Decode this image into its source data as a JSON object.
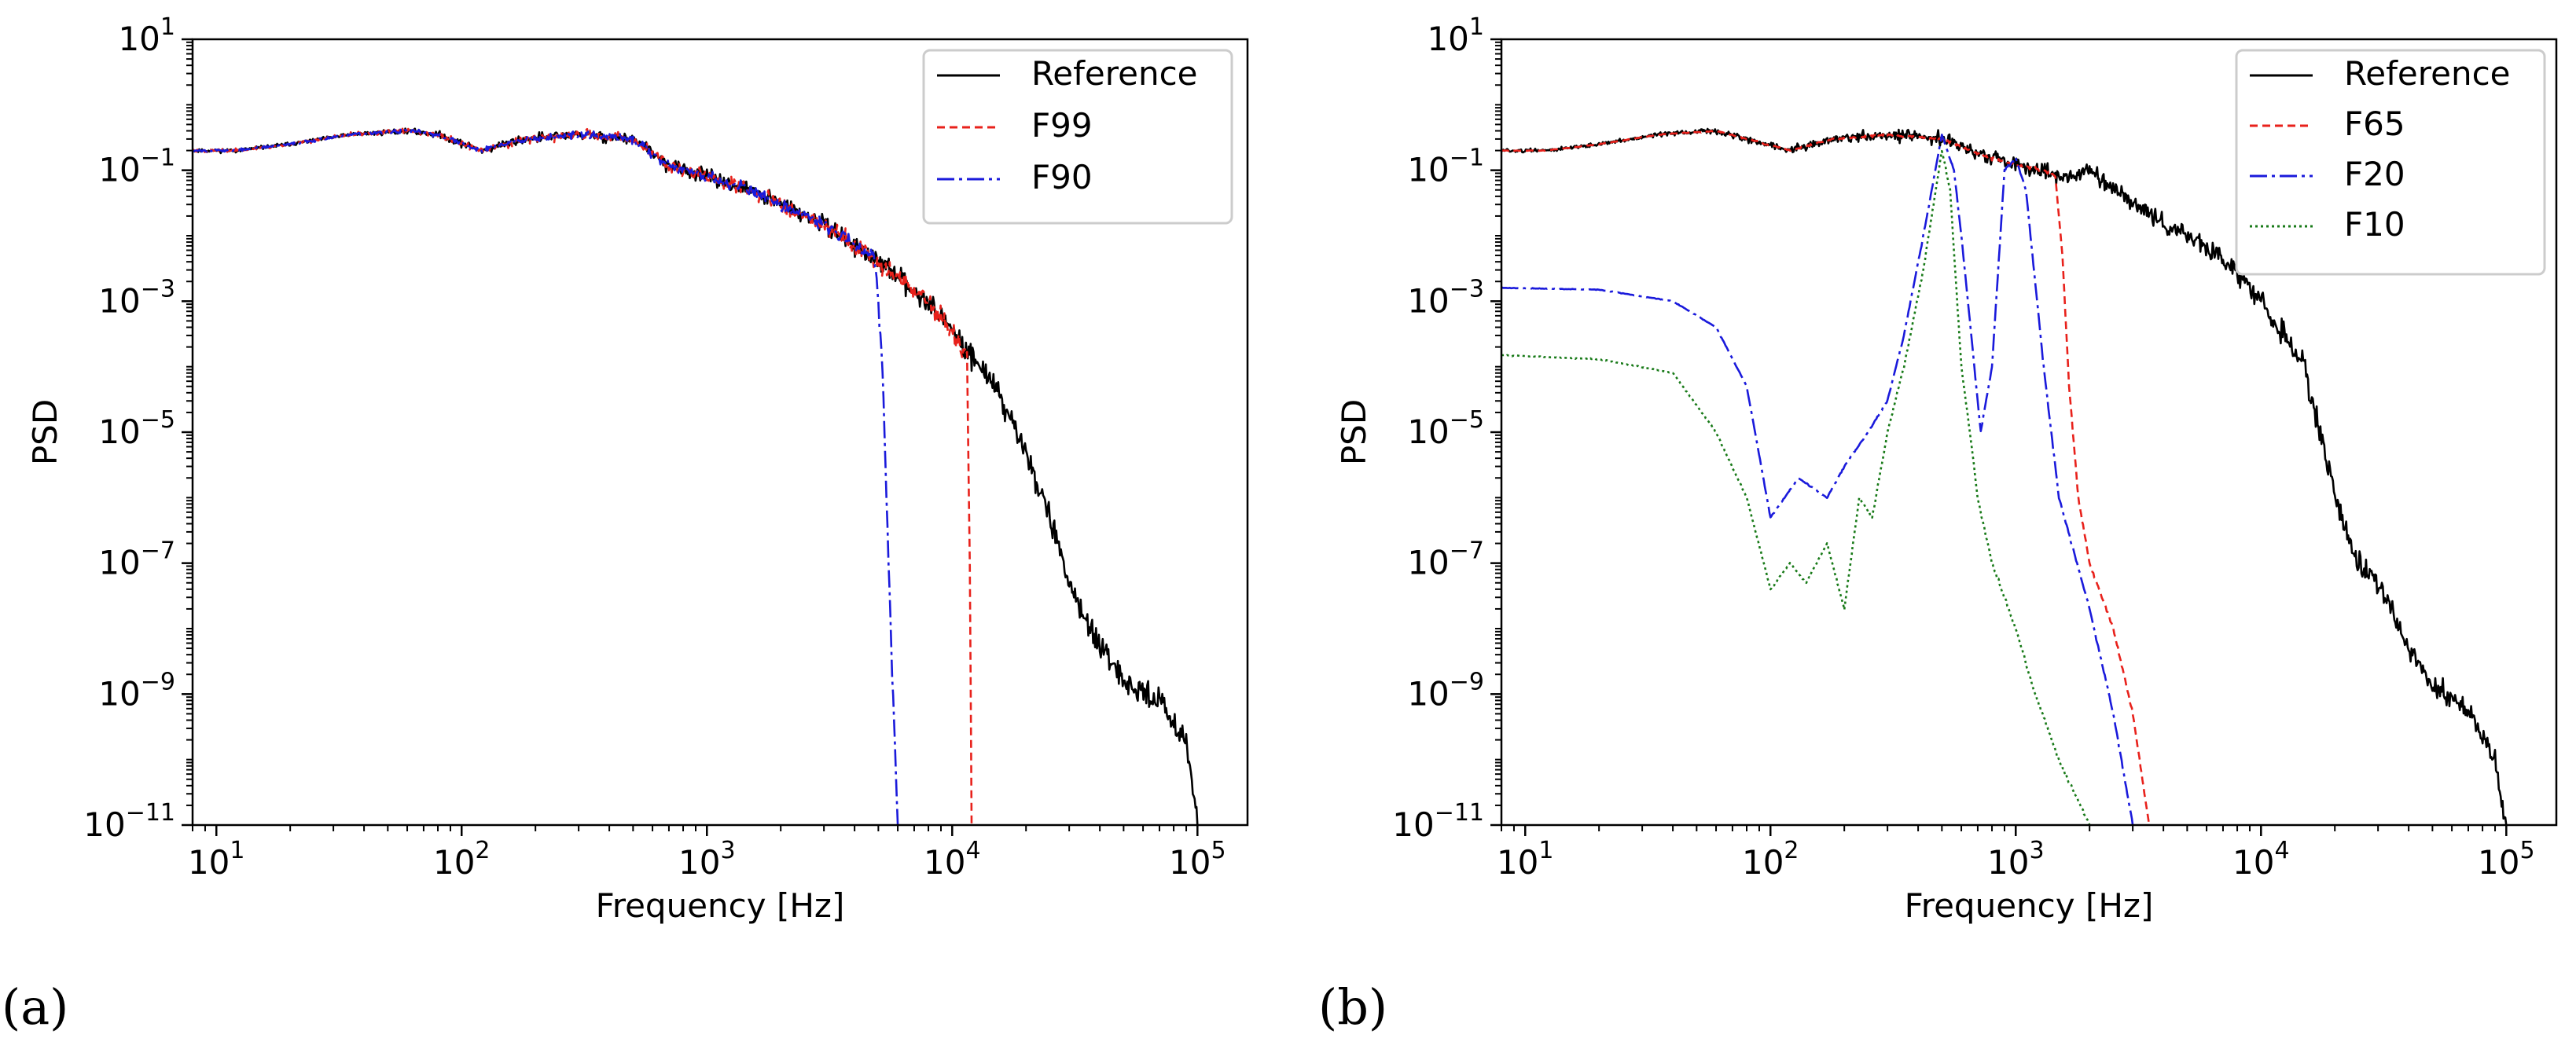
{
  "chart_data": [
    {
      "id": "a",
      "panel_label": "(a)",
      "type": "line",
      "xscale": "log",
      "yscale": "log",
      "xlim": [
        8,
        160000
      ],
      "ylim": [
        1e-11,
        10
      ],
      "xlabel": "Frequency [Hz]",
      "ylabel": "PSD",
      "xticks": [
        {
          "value": 10,
          "base": "10",
          "exp": "1"
        },
        {
          "value": 100,
          "base": "10",
          "exp": "2"
        },
        {
          "value": 1000,
          "base": "10",
          "exp": "3"
        },
        {
          "value": 10000,
          "base": "10",
          "exp": "4"
        },
        {
          "value": 100000,
          "base": "10",
          "exp": "5"
        }
      ],
      "yticks": [
        {
          "value": 10,
          "base": "10",
          "exp": "1"
        },
        {
          "value": 0.1,
          "base": "10",
          "exp": "−1"
        },
        {
          "value": 0.001,
          "base": "10",
          "exp": "−3"
        },
        {
          "value": 1e-05,
          "base": "10",
          "exp": "−5"
        },
        {
          "value": 1e-07,
          "base": "10",
          "exp": "−7"
        },
        {
          "value": 1e-09,
          "base": "10",
          "exp": "−9"
        },
        {
          "value": 1e-11,
          "base": "10",
          "exp": "−11"
        }
      ],
      "legend_position": "top-right",
      "series": [
        {
          "name": "Reference",
          "color": "#000000",
          "dash": "solid",
          "noise": 0.3,
          "seed": 11,
          "points": [
            [
              8,
              0.2
            ],
            [
              12,
              0.2
            ],
            [
              20,
              0.25
            ],
            [
              35,
              0.35
            ],
            [
              60,
              0.4
            ],
            [
              80,
              0.35
            ],
            [
              120,
              0.2
            ],
            [
              180,
              0.3
            ],
            [
              300,
              0.35
            ],
            [
              500,
              0.3
            ],
            [
              700,
              0.12
            ],
            [
              1000,
              0.08
            ],
            [
              1500,
              0.05
            ],
            [
              2000,
              0.03
            ],
            [
              3000,
              0.015
            ],
            [
              5000,
              0.004
            ],
            [
              8000,
              0.001
            ],
            [
              12000,
              0.00015
            ],
            [
              15000,
              5e-05
            ],
            [
              20000,
              5e-06
            ],
            [
              25000,
              5e-07
            ],
            [
              30000,
              5e-08
            ],
            [
              40000,
              5e-09
            ],
            [
              50000,
              1.5e-09
            ],
            [
              70000,
              8e-10
            ],
            [
              90000,
              2e-10
            ],
            [
              100000,
              1e-11
            ]
          ]
        },
        {
          "name": "F99",
          "color": "#e8211b",
          "dash": "10,6",
          "noise": 0.28,
          "seed": 23,
          "points": [
            [
              8,
              0.2
            ],
            [
              12,
              0.2
            ],
            [
              20,
              0.25
            ],
            [
              35,
              0.35
            ],
            [
              60,
              0.4
            ],
            [
              80,
              0.35
            ],
            [
              120,
              0.2
            ],
            [
              180,
              0.3
            ],
            [
              300,
              0.35
            ],
            [
              500,
              0.3
            ],
            [
              700,
              0.12
            ],
            [
              1000,
              0.08
            ],
            [
              1500,
              0.05
            ],
            [
              2000,
              0.03
            ],
            [
              3000,
              0.015
            ],
            [
              5000,
              0.004
            ],
            [
              8000,
              0.001
            ],
            [
              11500,
              0.00015
            ],
            [
              11800,
              1e-07
            ],
            [
              12000,
              1e-11
            ]
          ]
        },
        {
          "name": "F90",
          "color": "#1a1adb",
          "dash": "22,6,4,6",
          "noise": 0.22,
          "seed": 37,
          "points": [
            [
              8,
              0.2
            ],
            [
              12,
              0.2
            ],
            [
              20,
              0.25
            ],
            [
              35,
              0.35
            ],
            [
              60,
              0.4
            ],
            [
              80,
              0.35
            ],
            [
              120,
              0.2
            ],
            [
              180,
              0.3
            ],
            [
              300,
              0.35
            ],
            [
              500,
              0.3
            ],
            [
              700,
              0.12
            ],
            [
              1000,
              0.08
            ],
            [
              1500,
              0.05
            ],
            [
              2000,
              0.03
            ],
            [
              3000,
              0.015
            ],
            [
              4800,
              0.005
            ],
            [
              5000,
              0.001
            ],
            [
              5200,
              0.0001
            ],
            [
              5500,
              1e-07
            ],
            [
              6000,
              1e-11
            ]
          ]
        }
      ]
    },
    {
      "id": "b",
      "panel_label": "(b)",
      "type": "line",
      "xscale": "log",
      "yscale": "log",
      "xlim": [
        8,
        160000
      ],
      "ylim": [
        1e-11,
        10
      ],
      "xlabel": "Frequency [Hz]",
      "ylabel": "PSD",
      "xticks": [
        {
          "value": 10,
          "base": "10",
          "exp": "1"
        },
        {
          "value": 100,
          "base": "10",
          "exp": "2"
        },
        {
          "value": 1000,
          "base": "10",
          "exp": "3"
        },
        {
          "value": 10000,
          "base": "10",
          "exp": "4"
        },
        {
          "value": 100000,
          "base": "10",
          "exp": "5"
        }
      ],
      "yticks": [
        {
          "value": 10,
          "base": "10",
          "exp": "1"
        },
        {
          "value": 0.1,
          "base": "10",
          "exp": "−1"
        },
        {
          "value": 0.001,
          "base": "10",
          "exp": "−3"
        },
        {
          "value": 1e-05,
          "base": "10",
          "exp": "−5"
        },
        {
          "value": 1e-07,
          "base": "10",
          "exp": "−7"
        },
        {
          "value": 1e-09,
          "base": "10",
          "exp": "−9"
        },
        {
          "value": 1e-11,
          "base": "10",
          "exp": "−11"
        }
      ],
      "legend_position": "top-right",
      "series": [
        {
          "name": "Reference",
          "color": "#000000",
          "dash": "solid",
          "noise": 0.3,
          "seed": 51,
          "points": [
            [
              8,
              0.2
            ],
            [
              12,
              0.2
            ],
            [
              20,
              0.25
            ],
            [
              35,
              0.35
            ],
            [
              60,
              0.4
            ],
            [
              80,
              0.3
            ],
            [
              120,
              0.2
            ],
            [
              180,
              0.3
            ],
            [
              300,
              0.35
            ],
            [
              500,
              0.3
            ],
            [
              800,
              0.15
            ],
            [
              1200,
              0.1
            ],
            [
              1600,
              0.08
            ],
            [
              2000,
              0.1
            ],
            [
              3000,
              0.03
            ],
            [
              5000,
              0.01
            ],
            [
              8000,
              0.003
            ],
            [
              10000,
              0.001
            ],
            [
              15000,
              0.0001
            ],
            [
              20000,
              1e-06
            ],
            [
              25000,
              1e-07
            ],
            [
              30000,
              5e-08
            ],
            [
              40000,
              5e-09
            ],
            [
              50000,
              1.5e-09
            ],
            [
              70000,
              5e-10
            ],
            [
              90000,
              1e-10
            ],
            [
              100000,
              1e-11
            ]
          ]
        },
        {
          "name": "F65",
          "color": "#e8211b",
          "dash": "10,6",
          "noise": 0.06,
          "seed": 63,
          "points": [
            [
              8,
              0.2
            ],
            [
              12,
              0.2
            ],
            [
              20,
              0.25
            ],
            [
              35,
              0.35
            ],
            [
              60,
              0.4
            ],
            [
              80,
              0.3
            ],
            [
              120,
              0.2
            ],
            [
              180,
              0.3
            ],
            [
              300,
              0.35
            ],
            [
              500,
              0.3
            ],
            [
              800,
              0.15
            ],
            [
              1000,
              0.12
            ],
            [
              1300,
              0.1
            ],
            [
              1450,
              0.08
            ],
            [
              1550,
              0.005
            ],
            [
              1650,
              5e-05
            ],
            [
              1800,
              1e-06
            ],
            [
              2000,
              1e-07
            ],
            [
              2500,
              1e-08
            ],
            [
              3000,
              5e-10
            ],
            [
              3500,
              1e-11
            ]
          ]
        },
        {
          "name": "F20",
          "color": "#1a1adb",
          "dash": "22,6,4,6",
          "noise": 0.05,
          "seed": 71,
          "points": [
            [
              8,
              0.0016
            ],
            [
              20,
              0.0015
            ],
            [
              40,
              0.001
            ],
            [
              60,
              0.0004
            ],
            [
              80,
              5e-05
            ],
            [
              100,
              5e-07
            ],
            [
              130,
              2e-06
            ],
            [
              170,
              1e-06
            ],
            [
              200,
              3e-06
            ],
            [
              250,
              1e-05
            ],
            [
              300,
              3e-05
            ],
            [
              350,
              0.0003
            ],
            [
              420,
              0.01
            ],
            [
              500,
              0.35
            ],
            [
              560,
              0.1
            ],
            [
              600,
              0.01
            ],
            [
              650,
              0.0005
            ],
            [
              720,
              1e-05
            ],
            [
              800,
              0.0001
            ],
            [
              900,
              0.1
            ],
            [
              1000,
              0.15
            ],
            [
              1100,
              0.05
            ],
            [
              1300,
              0.0001
            ],
            [
              1500,
              1e-06
            ],
            [
              2000,
              2e-08
            ],
            [
              2500,
              5e-10
            ],
            [
              3000,
              1e-11
            ]
          ]
        },
        {
          "name": "F10",
          "color": "#187a18",
          "dash": "3,4",
          "noise": 0.08,
          "seed": 83,
          "points": [
            [
              8,
              0.00015
            ],
            [
              20,
              0.00013
            ],
            [
              40,
              8e-05
            ],
            [
              60,
              1e-05
            ],
            [
              80,
              1e-06
            ],
            [
              100,
              4e-08
            ],
            [
              120,
              1e-07
            ],
            [
              140,
              5e-08
            ],
            [
              170,
              2e-07
            ],
            [
              200,
              2e-08
            ],
            [
              230,
              1e-06
            ],
            [
              260,
              5e-07
            ],
            [
              300,
              1e-05
            ],
            [
              350,
              0.0001
            ],
            [
              420,
              0.003
            ],
            [
              500,
              0.2
            ],
            [
              540,
              0.05
            ],
            [
              600,
              0.0001
            ],
            [
              650,
              1e-05
            ],
            [
              700,
              1e-06
            ],
            [
              800,
              1e-07
            ],
            [
              1000,
              1e-08
            ],
            [
              1200,
              1e-09
            ],
            [
              1500,
              1e-10
            ],
            [
              2000,
              1e-11
            ]
          ]
        }
      ]
    }
  ]
}
